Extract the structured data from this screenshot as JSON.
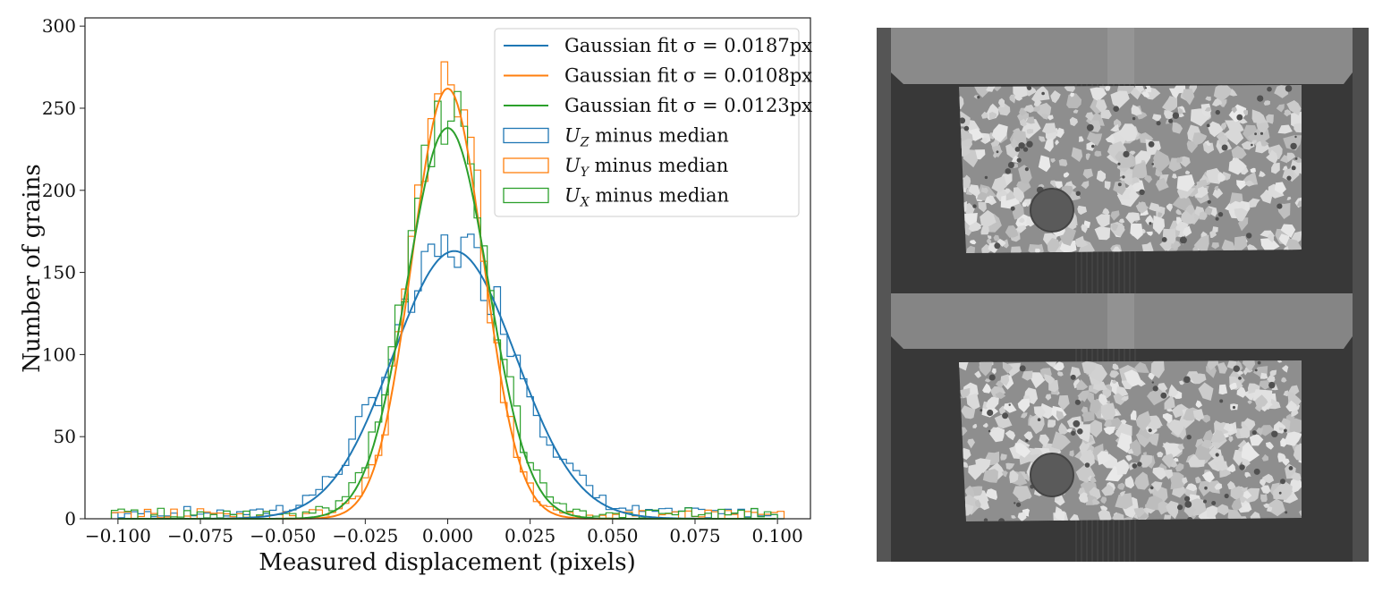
{
  "chart_data": {
    "type": "histogram",
    "xlabel": "Measured displacement (pixels)",
    "ylabel": "Number of grains",
    "xlim": [
      -0.11,
      0.11
    ],
    "ylim": [
      0,
      305
    ],
    "x_ticks": [
      -0.1,
      -0.075,
      -0.05,
      -0.025,
      0.0,
      0.025,
      0.05,
      0.075,
      0.1
    ],
    "x_tick_labels": [
      "−0.100",
      "−0.075",
      "−0.050",
      "−0.025",
      "0.000",
      "0.025",
      "0.050",
      "0.075",
      "0.100"
    ],
    "y_ticks": [
      0,
      50,
      100,
      150,
      200,
      250,
      300
    ],
    "y_tick_labels": [
      "0",
      "50",
      "100",
      "150",
      "200",
      "250",
      "300"
    ],
    "grid": false,
    "legend_position": "top-right",
    "bin_width": 0.002,
    "fits": [
      {
        "label": "Gaussian fit σ = 0.0187px",
        "color": "#1f77b4",
        "mu": 0.002,
        "sigma": 0.0187,
        "amplitude": 163
      },
      {
        "label": "Gaussian fit σ = 0.0108px",
        "color": "#ff7f0e",
        "mu": 0.0,
        "sigma": 0.0108,
        "amplitude": 262
      },
      {
        "label": "Gaussian fit σ = 0.0123px",
        "color": "#2ca02c",
        "mu": 0.0,
        "sigma": 0.0123,
        "amplitude": 238
      }
    ],
    "histograms": [
      {
        "label": "U_Z minus median",
        "label_symbol": "U",
        "label_sub": "Z",
        "label_rest": " minus median",
        "color": "#1f77b4",
        "mu": 0.002,
        "sigma": 0.0187,
        "amplitude": 163,
        "tail": 3.0,
        "seed": 7
      },
      {
        "label": "U_Y minus median",
        "label_symbol": "U",
        "label_sub": "Y",
        "label_rest": " minus median",
        "color": "#ff7f0e",
        "mu": 0.0,
        "sigma": 0.0108,
        "amplitude": 272,
        "tail": 2.5,
        "seed": 13
      },
      {
        "label": "U_X minus median",
        "label_symbol": "U",
        "label_sub": "X",
        "label_rest": " minus median",
        "color": "#2ca02c",
        "mu": 0.0,
        "sigma": 0.0123,
        "amplitude": 245,
        "tail": 2.5,
        "seed": 29
      }
    ]
  },
  "image": {
    "caption": "",
    "colors": {
      "background": "#3a3a3a",
      "frame": "#6e6e6e",
      "sample": "#9a9a9a",
      "grain": "#d8d8d8"
    }
  }
}
